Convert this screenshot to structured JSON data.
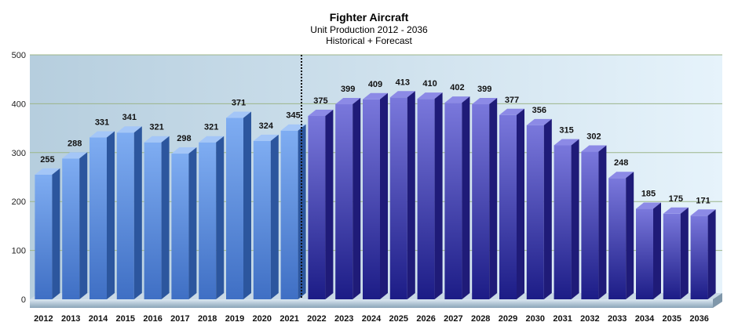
{
  "chart_data": {
    "type": "bar",
    "title": "Fighter Aircraft",
    "subtitle": "Unit Production 2012 - 2036",
    "subtitle2": "Historical + Forecast",
    "xlabel": "",
    "ylabel": "",
    "ylim": [
      0,
      500
    ],
    "yticks": [
      0,
      100,
      200,
      300,
      400,
      500
    ],
    "grid": true,
    "style": "3d",
    "forecast_start": "2022",
    "colors": {
      "historical": "#5b8ee0",
      "forecast": "#4b43c4",
      "background": "#b9d4e6",
      "grid": "#9cb58a"
    },
    "categories": [
      "2012",
      "2013",
      "2014",
      "2015",
      "2016",
      "2017",
      "2018",
      "2019",
      "2020",
      "2021",
      "2022",
      "2023",
      "2024",
      "2025",
      "2026",
      "2027",
      "2028",
      "2029",
      "2030",
      "2031",
      "2032",
      "2033",
      "2034",
      "2035",
      "2036"
    ],
    "values": [
      255,
      288,
      331,
      341,
      321,
      298,
      321,
      371,
      324,
      345,
      375,
      399,
      409,
      413,
      410,
      402,
      399,
      377,
      356,
      315,
      302,
      248,
      185,
      175,
      171
    ]
  }
}
